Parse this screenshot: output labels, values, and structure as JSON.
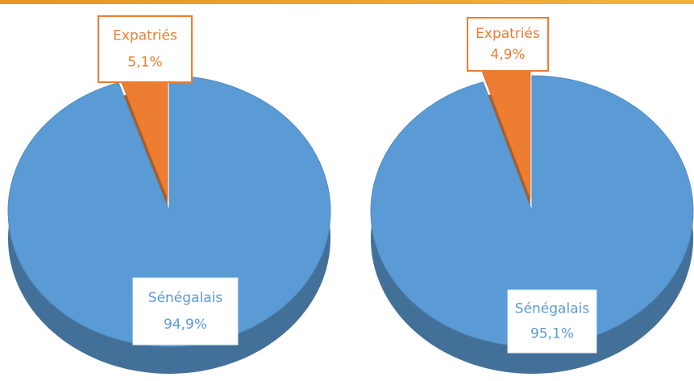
{
  "chart_data": [
    {
      "type": "pie",
      "categories": [
        "Expatriés",
        "Sénégalais"
      ],
      "values": [
        5.1,
        94.9
      ],
      "value_labels": [
        "5,1%",
        "94,9%"
      ],
      "colors": [
        "#ed7d31",
        "#5b9bd5"
      ]
    },
    {
      "type": "pie",
      "categories": [
        "Expatriés",
        "Sénégalais"
      ],
      "values": [
        4.9,
        95.1
      ],
      "value_labels": [
        "4,9%",
        "95,1%"
      ],
      "colors": [
        "#ed7d31",
        "#5b9bd5"
      ]
    }
  ]
}
